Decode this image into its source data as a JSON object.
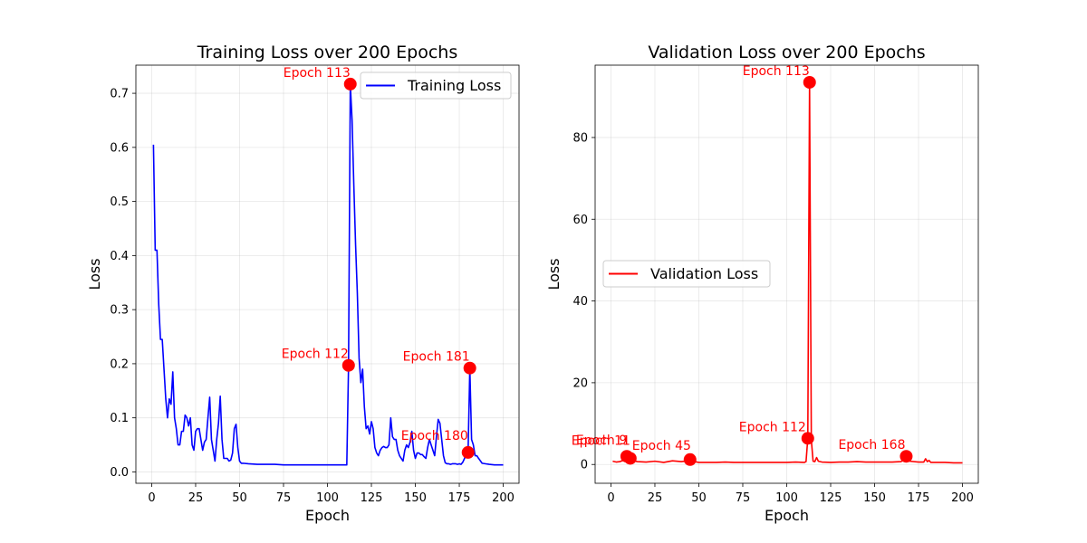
{
  "chart_data": [
    {
      "type": "line",
      "title": "Training Loss over 200 Epochs",
      "xlabel": "Epoch",
      "ylabel": "Loss",
      "xlim": [
        -9,
        209
      ],
      "ylim": [
        -0.021,
        0.752
      ],
      "xticks": [
        0,
        25,
        50,
        75,
        100,
        125,
        150,
        175,
        200
      ],
      "yticks": [
        0.0,
        0.1,
        0.2,
        0.3,
        0.4,
        0.5,
        0.6,
        0.7
      ],
      "ytick_labels": [
        "0.0",
        "0.1",
        "0.2",
        "0.3",
        "0.4",
        "0.5",
        "0.6",
        "0.7"
      ],
      "grid": true,
      "legend_position": "top-right",
      "series": [
        {
          "name": "Training Loss",
          "color": "#0000ff",
          "x": [
            1,
            2,
            3,
            4,
            5,
            6,
            7,
            8,
            9,
            10,
            11,
            12,
            13,
            14,
            15,
            16,
            17,
            18,
            19,
            20,
            21,
            22,
            23,
            24,
            25,
            26,
            27,
            28,
            29,
            30,
            31,
            32,
            33,
            34,
            35,
            36,
            37,
            38,
            39,
            40,
            41,
            42,
            43,
            44,
            45,
            46,
            47,
            48,
            49,
            50,
            51,
            52,
            55,
            60,
            65,
            70,
            75,
            80,
            85,
            90,
            95,
            100,
            105,
            110,
            111,
            112,
            113,
            114,
            115,
            116,
            117,
            118,
            119,
            120,
            121,
            122,
            123,
            124,
            125,
            126,
            127,
            128,
            129,
            130,
            131,
            132,
            133,
            134,
            135,
            136,
            137,
            138,
            139,
            140,
            141,
            142,
            143,
            144,
            145,
            146,
            147,
            148,
            149,
            150,
            151,
            152,
            153,
            154,
            155,
            156,
            157,
            158,
            159,
            160,
            161,
            162,
            163,
            164,
            165,
            166,
            167,
            168,
            169,
            170,
            171,
            172,
            173,
            174,
            175,
            176,
            177,
            178,
            179,
            180,
            181,
            182,
            183,
            184,
            185,
            186,
            188,
            190,
            192,
            195,
            200
          ],
          "values": [
            0.605,
            0.41,
            0.41,
            0.31,
            0.245,
            0.245,
            0.19,
            0.135,
            0.1,
            0.135,
            0.125,
            0.185,
            0.1,
            0.08,
            0.05,
            0.05,
            0.075,
            0.075,
            0.105,
            0.1,
            0.085,
            0.1,
            0.05,
            0.04,
            0.075,
            0.08,
            0.08,
            0.06,
            0.04,
            0.055,
            0.06,
            0.1,
            0.138,
            0.06,
            0.04,
            0.02,
            0.06,
            0.09,
            0.14,
            0.06,
            0.025,
            0.025,
            0.025,
            0.02,
            0.022,
            0.035,
            0.08,
            0.088,
            0.045,
            0.02,
            0.016,
            0.016,
            0.015,
            0.014,
            0.014,
            0.014,
            0.013,
            0.013,
            0.013,
            0.013,
            0.013,
            0.013,
            0.013,
            0.013,
            0.013,
            0.197,
            0.717,
            0.65,
            0.53,
            0.42,
            0.33,
            0.21,
            0.165,
            0.19,
            0.12,
            0.08,
            0.085,
            0.07,
            0.093,
            0.08,
            0.045,
            0.035,
            0.03,
            0.04,
            0.045,
            0.047,
            0.045,
            0.045,
            0.05,
            0.1,
            0.065,
            0.06,
            0.06,
            0.04,
            0.03,
            0.025,
            0.02,
            0.04,
            0.05,
            0.045,
            0.055,
            0.075,
            0.04,
            0.025,
            0.035,
            0.035,
            0.032,
            0.032,
            0.028,
            0.025,
            0.045,
            0.06,
            0.05,
            0.04,
            0.03,
            0.065,
            0.097,
            0.09,
            0.06,
            0.03,
            0.017,
            0.015,
            0.015,
            0.014,
            0.015,
            0.015,
            0.015,
            0.014,
            0.015,
            0.014,
            0.018,
            0.025,
            0.036,
            0.036,
            0.192,
            0.06,
            0.05,
            0.03,
            0.03,
            0.025,
            0.016,
            0.015,
            0.014,
            0.013,
            0.013
          ]
        }
      ],
      "annotations": [
        {
          "label": "Epoch 113",
          "x": 113,
          "y": 0.717
        },
        {
          "label": "Epoch 112",
          "x": 112,
          "y": 0.197
        },
        {
          "label": "Epoch 181",
          "x": 181,
          "y": 0.192
        },
        {
          "label": "Epoch 180",
          "x": 180,
          "y": 0.036
        }
      ]
    },
    {
      "type": "line",
      "title": "Validation Loss over 200 Epochs",
      "xlabel": "Epoch",
      "ylabel": "Loss",
      "xlim": [
        -9,
        209
      ],
      "ylim": [
        -4.6,
        97.7
      ],
      "xticks": [
        0,
        25,
        50,
        75,
        100,
        125,
        150,
        175,
        200
      ],
      "yticks": [
        0,
        20,
        40,
        60,
        80
      ],
      "ytick_labels": [
        "0",
        "20",
        "40",
        "60",
        "80"
      ],
      "grid": true,
      "legend_position": "center-left",
      "series": [
        {
          "name": "Validation Loss",
          "color": "#ff0000",
          "x": [
            1,
            3,
            5,
            7,
            8,
            9,
            10,
            11,
            12,
            13,
            15,
            20,
            25,
            30,
            35,
            40,
            44,
            45,
            46,
            50,
            55,
            60,
            65,
            70,
            75,
            80,
            85,
            90,
            95,
            100,
            105,
            110,
            111,
            112,
            113,
            114,
            115,
            116,
            117,
            118,
            120,
            125,
            130,
            135,
            140,
            145,
            150,
            155,
            160,
            165,
            167,
            168,
            169,
            170,
            175,
            178,
            179,
            180,
            181,
            182,
            185,
            190,
            195,
            200
          ],
          "values": [
            0.8,
            0.6,
            0.7,
            1.0,
            1.7,
            2.0,
            1.8,
            1.5,
            1.4,
            0.9,
            0.7,
            0.6,
            0.8,
            0.5,
            0.9,
            0.7,
            0.9,
            1.2,
            0.8,
            0.5,
            0.5,
            0.5,
            0.6,
            0.5,
            0.5,
            0.5,
            0.5,
            0.5,
            0.5,
            0.5,
            0.6,
            0.5,
            0.7,
            6.4,
            93.5,
            6.0,
            0.8,
            0.7,
            1.7,
            0.8,
            0.6,
            0.5,
            0.6,
            0.6,
            0.7,
            0.6,
            0.6,
            0.6,
            0.6,
            0.7,
            1.2,
            2.0,
            1.0,
            0.8,
            0.6,
            0.6,
            1.4,
            0.7,
            1.0,
            0.5,
            0.5,
            0.5,
            0.4,
            0.4
          ]
        }
      ],
      "annotations": [
        {
          "label": "Epoch 113",
          "x": 113,
          "y": 93.5
        },
        {
          "label": "Epoch 112",
          "x": 112,
          "y": 6.4
        },
        {
          "label": "Epoch 168",
          "x": 168,
          "y": 2.0
        },
        {
          "label": "Epoch 45",
          "x": 45,
          "y": 1.2
        },
        {
          "label": "Epoch 9",
          "x": 9,
          "y": 2.0
        },
        {
          "label": "Epoch 11",
          "x": 11,
          "y": 1.5
        }
      ]
    }
  ]
}
